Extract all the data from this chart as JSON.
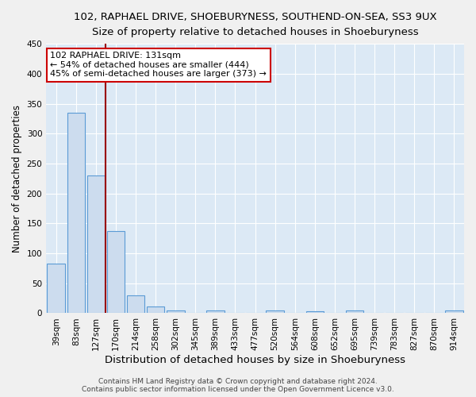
{
  "title": "102, RAPHAEL DRIVE, SHOEBURYNESS, SOUTHEND-ON-SEA, SS3 9UX",
  "subtitle": "Size of property relative to detached houses in Shoeburyness",
  "xlabel": "Distribution of detached houses by size in Shoeburyness",
  "ylabel": "Number of detached properties",
  "categories": [
    "39sqm",
    "83sqm",
    "127sqm",
    "170sqm",
    "214sqm",
    "258sqm",
    "302sqm",
    "345sqm",
    "389sqm",
    "433sqm",
    "477sqm",
    "520sqm",
    "564sqm",
    "608sqm",
    "652sqm",
    "695sqm",
    "739sqm",
    "783sqm",
    "827sqm",
    "870sqm",
    "914sqm"
  ],
  "values": [
    83,
    335,
    230,
    137,
    30,
    11,
    4,
    0,
    5,
    0,
    0,
    4,
    0,
    3,
    0,
    4,
    0,
    0,
    0,
    0,
    4
  ],
  "bar_color": "#ccdcee",
  "bar_edge_color": "#5b9bd5",
  "background_color": "#dce9f5",
  "grid_color": "#ffffff",
  "vline_x": 2.5,
  "vline_color": "#990000",
  "annotation_line1": "102 RAPHAEL DRIVE: 131sqm",
  "annotation_line2": "← 54% of detached houses are smaller (444)",
  "annotation_line3": "45% of semi-detached houses are larger (373) →",
  "annotation_box_color": "#ffffff",
  "annotation_box_edge": "#cc0000",
  "footer": "Contains HM Land Registry data © Crown copyright and database right 2024.\nContains public sector information licensed under the Open Government Licence v3.0.",
  "ylim": [
    0,
    450
  ],
  "yticks": [
    0,
    50,
    100,
    150,
    200,
    250,
    300,
    350,
    400,
    450
  ],
  "title_fontsize": 9.5,
  "subtitle_fontsize": 9,
  "xlabel_fontsize": 9.5,
  "ylabel_fontsize": 8.5,
  "tick_fontsize": 7.5,
  "footer_fontsize": 6.5,
  "annot_fontsize": 8
}
